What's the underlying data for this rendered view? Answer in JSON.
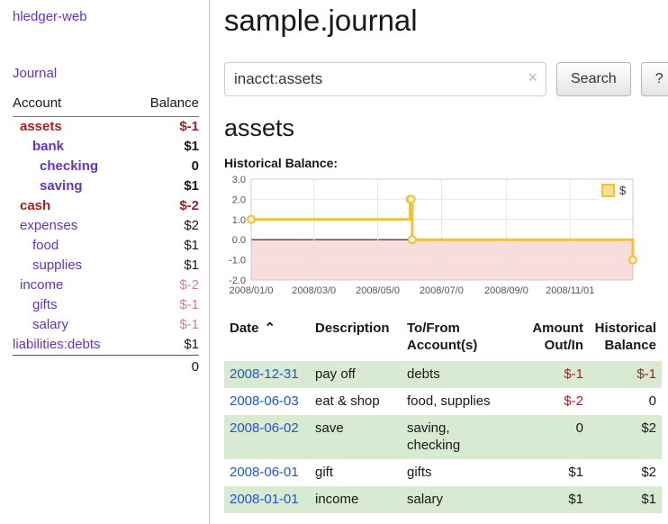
{
  "colors": {
    "link_purple": "#6633bb",
    "link_blue": "#2255cc",
    "negative_strong": "#a22222",
    "negative_muted": "#c88888",
    "row_green": "#d8ead2",
    "chart_line": "#edc240",
    "chart_marker_fill": "#faf0cd",
    "chart_negative_fill": "#f9dcdc",
    "zero_line": "#555555",
    "grid_line": "#e6e6e6"
  },
  "sidebar": {
    "brand": "hledger-web",
    "journal_link": "Journal",
    "table": {
      "account_header": "Account",
      "balance_header": "Balance",
      "total": "0",
      "accounts": [
        {
          "name": "assets",
          "depth": 1,
          "bold": true,
          "name_color": "dred",
          "balance": "$-1",
          "balance_color": "dred"
        },
        {
          "name": "bank",
          "depth": 2,
          "bold": true,
          "name_color": "purple",
          "balance": "$1",
          "balance_color": "default"
        },
        {
          "name": "checking",
          "depth": 3,
          "bold": true,
          "name_color": "purple",
          "balance": "0",
          "balance_color": "default"
        },
        {
          "name": "saving",
          "depth": 3,
          "bold": true,
          "name_color": "purple",
          "balance": "$1",
          "balance_color": "default"
        },
        {
          "name": "cash",
          "depth": 1,
          "bold": true,
          "name_color": "dred",
          "balance": "$-2",
          "balance_color": "dred"
        },
        {
          "name": "expenses",
          "depth": 1,
          "bold": false,
          "name_color": "purple",
          "balance": "$2",
          "balance_color": "default"
        },
        {
          "name": "food",
          "depth": 2,
          "bold": false,
          "name_color": "purple",
          "balance": "$1",
          "balance_color": "default"
        },
        {
          "name": "supplies",
          "depth": 2,
          "bold": false,
          "name_color": "purple",
          "balance": "$1",
          "balance_color": "default"
        },
        {
          "name": "income",
          "depth": 1,
          "bold": false,
          "name_color": "purple",
          "balance": "$-2",
          "balance_color": "mred"
        },
        {
          "name": "gifts",
          "depth": 2,
          "bold": false,
          "name_color": "purple",
          "balance": "$-1",
          "balance_color": "mred"
        },
        {
          "name": "salary",
          "depth": 2,
          "bold": false,
          "name_color": "purple",
          "balance": "$-1",
          "balance_color": "mred"
        },
        {
          "name": "liabilities:debts",
          "depth": 0,
          "bold": false,
          "name_color": "purple",
          "balance": "$1",
          "balance_color": "default"
        }
      ]
    }
  },
  "main": {
    "title": "sample.journal",
    "search": {
      "value": "inacct:assets",
      "clear_icon": "×",
      "button_label": "Search",
      "help_label": "?"
    },
    "heading": "assets",
    "chart_label": "Historical Balance:"
  },
  "chart_data": {
    "type": "line",
    "title": "Historical Balance",
    "step": true,
    "x_start": "2008-01-01",
    "x_end": "2008-12-31",
    "ylim": [
      -2,
      3
    ],
    "yticks": [
      "3.0",
      "2.0",
      "1.0",
      "0.0",
      "-1.0",
      "-2.0"
    ],
    "xticks": [
      {
        "date": "2008-01-01",
        "label": "2008/01/0"
      },
      {
        "date": "2008-03-01",
        "label": "2008/03/0"
      },
      {
        "date": "2008-05-01",
        "label": "2008/05/0"
      },
      {
        "date": "2008-07-01",
        "label": "2008/07/0"
      },
      {
        "date": "2008-09-01",
        "label": "2008/09/0"
      },
      {
        "date": "2008-11-01",
        "label": "2008/11/01"
      }
    ],
    "series": [
      {
        "name": "$",
        "points": [
          [
            "2008-01-01",
            1
          ],
          [
            "2008-06-01",
            2
          ],
          [
            "2008-06-02",
            2
          ],
          [
            "2008-06-03",
            0
          ],
          [
            "2008-12-31",
            -1
          ]
        ]
      }
    ],
    "legend": {
      "position": "top-right",
      "label": "$"
    },
    "negative_region_shaded": true
  },
  "transactions": {
    "sort_caret": "⌃",
    "headers": [
      {
        "lines": [
          "Date"
        ],
        "sortable": true
      },
      {
        "lines": [
          "Description"
        ]
      },
      {
        "lines": [
          "To/From",
          "Account(s)"
        ]
      },
      {
        "lines": [
          "Amount",
          "Out/In"
        ],
        "align": "right"
      },
      {
        "lines": [
          "Historical",
          "Balance"
        ],
        "align": "right"
      }
    ],
    "rows": [
      {
        "date": "2008-12-31",
        "description": "pay off",
        "accounts": "debts",
        "amount": "$-1",
        "amount_negative": true,
        "balance": "$-1",
        "balance_negative": true,
        "shaded": true
      },
      {
        "date": "2008-06-03",
        "description": "eat & shop",
        "accounts": "food, supplies",
        "amount": "$-2",
        "amount_negative": true,
        "balance": "0",
        "balance_negative": false,
        "shaded": false
      },
      {
        "date": "2008-06-02",
        "description": "save",
        "accounts": "saving,\nchecking",
        "amount": "0",
        "amount_negative": false,
        "balance": "$2",
        "balance_negative": false,
        "shaded": true
      },
      {
        "date": "2008-06-01",
        "description": "gift",
        "accounts": "gifts",
        "amount": "$1",
        "amount_negative": false,
        "balance": "$2",
        "balance_negative": false,
        "shaded": false
      },
      {
        "date": "2008-01-01",
        "description": "income",
        "accounts": "salary",
        "amount": "$1",
        "amount_negative": false,
        "balance": "$1",
        "balance_negative": false,
        "shaded": true
      }
    ]
  }
}
